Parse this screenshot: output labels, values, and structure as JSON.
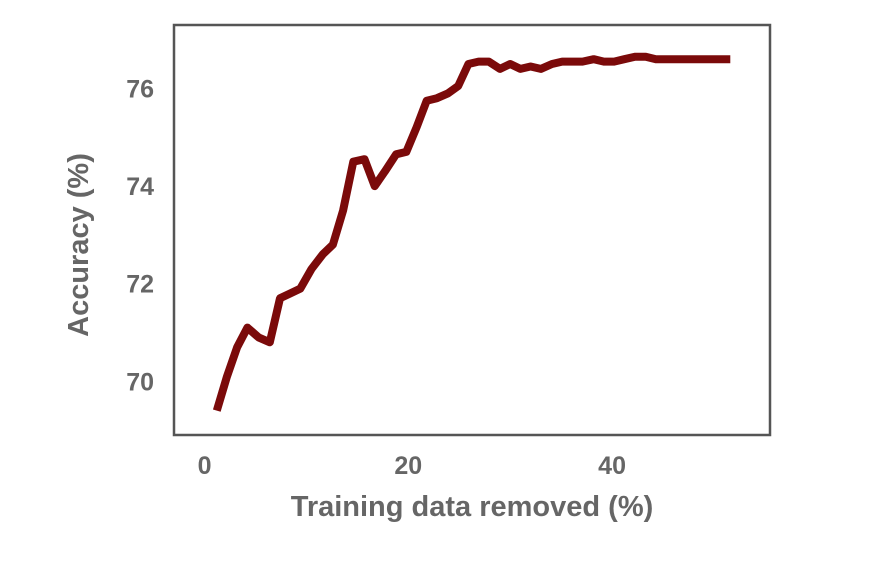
{
  "chart_data": {
    "type": "line",
    "title": "",
    "xlabel": "Training data removed (%)",
    "ylabel": "Accuracy (%)",
    "xlim": [
      -3,
      55.5
    ],
    "ylim": [
      68.9,
      77.3
    ],
    "xticks": [
      0,
      20,
      40
    ],
    "yticks": [
      70,
      72,
      74,
      76
    ],
    "grid": false,
    "legend": "none",
    "colors": {
      "line": "#7b0a0a",
      "frame": "#555555",
      "text": "#666666"
    },
    "series": [
      {
        "x": [
          1.2,
          2.2,
          3.2,
          4.2,
          5.3,
          6.4,
          7.4,
          8.4,
          9.4,
          10.5,
          11.6,
          12.6,
          13.6,
          14.6,
          15.7,
          16.7,
          17.7,
          18.8,
          19.8,
          20.8,
          21.8,
          22.8,
          23.9,
          24.9,
          25.9,
          26.9,
          27.9,
          29.0,
          30.0,
          31.0,
          32.0,
          33.0,
          34.1,
          35.1,
          36.1,
          37.1,
          38.2,
          39.2,
          40.2,
          41.2,
          42.3,
          43.3,
          44.3,
          45.3,
          46.4,
          47.4,
          48.4,
          49.5,
          50.5,
          51.6
        ],
        "y": [
          69.4,
          70.1,
          70.7,
          71.1,
          70.9,
          70.8,
          71.7,
          71.8,
          71.9,
          72.3,
          72.6,
          72.8,
          73.5,
          74.5,
          74.55,
          74.0,
          74.3,
          74.65,
          74.7,
          75.2,
          75.75,
          75.8,
          75.9,
          76.05,
          76.5,
          76.55,
          76.55,
          76.4,
          76.5,
          76.4,
          76.45,
          76.4,
          76.5,
          76.55,
          76.55,
          76.55,
          76.6,
          76.55,
          76.55,
          76.6,
          76.65,
          76.65,
          76.6,
          76.6,
          76.6,
          76.6,
          76.6,
          76.6,
          76.6,
          76.6
        ]
      }
    ]
  }
}
